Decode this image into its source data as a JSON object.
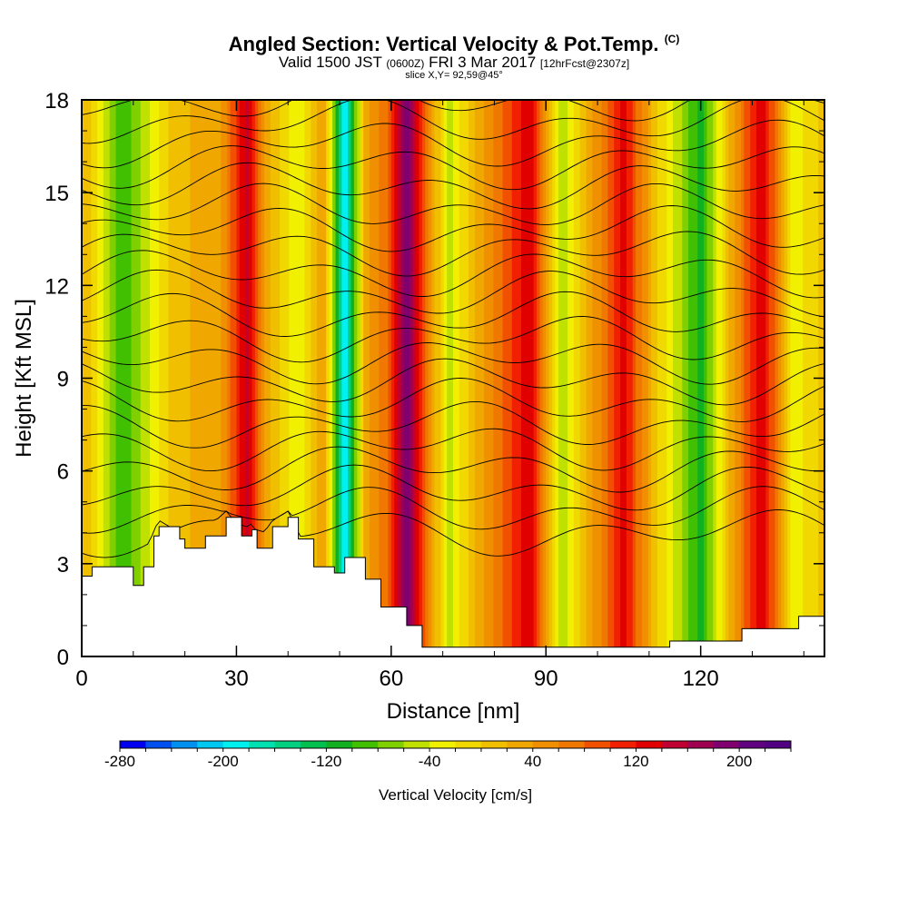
{
  "header": {
    "title_main": "Angled Section: Vertical Velocity & Pot.Temp.",
    "title_tag": "(C)",
    "valid_prefix": "Valid 1500 JST",
    "valid_utc": "(0600Z)",
    "valid_date": "FRI 3 Mar 2017",
    "forecast": "[12hrFcst@2307z]",
    "slice": "slice X,Y= 92,59@45°"
  },
  "chart_data": {
    "type": "heatmap",
    "xlabel": "Distance [nm]",
    "ylabel": "Height [Kft MSL]",
    "xlim": [
      0,
      144
    ],
    "ylim": [
      0,
      18
    ],
    "x_ticks": [
      0,
      30,
      60,
      90,
      120
    ],
    "y_ticks": [
      0,
      3,
      6,
      9,
      12,
      15,
      18
    ],
    "colorbar": {
      "label": "Vertical Velocity [cm/s]",
      "min": -280,
      "max": 240,
      "step": 20,
      "tick_labels": [
        -280,
        -200,
        -120,
        -40,
        40,
        120,
        200
      ],
      "colors": [
        "#0000f0",
        "#0050f0",
        "#0090f0",
        "#00c8f0",
        "#00f0f0",
        "#00e0b0",
        "#00d080",
        "#00c050",
        "#10b020",
        "#40c000",
        "#80d000",
        "#c0e000",
        "#f0f000",
        "#f0d800",
        "#f0c000",
        "#f0a800",
        "#f09000",
        "#f07800",
        "#f05000",
        "#f02000",
        "#e00000",
        "#c00030",
        "#a00050",
        "#800070",
        "#600080",
        "#500080"
      ]
    },
    "columns": [
      {
        "x": 2,
        "w": 0
      },
      {
        "x": 8,
        "w": -100
      },
      {
        "x": 18,
        "w": 10
      },
      {
        "x": 27,
        "w": 40
      },
      {
        "x": 32,
        "w": 150
      },
      {
        "x": 36,
        "w": 30
      },
      {
        "x": 42,
        "w": -40
      },
      {
        "x": 47,
        "w": 40
      },
      {
        "x": 51,
        "w": -200
      },
      {
        "x": 55,
        "w": 30
      },
      {
        "x": 60,
        "w": 90
      },
      {
        "x": 63,
        "w": 210
      },
      {
        "x": 68,
        "w": 40
      },
      {
        "x": 71,
        "w": -50
      },
      {
        "x": 78,
        "w": 40
      },
      {
        "x": 87,
        "w": 140
      },
      {
        "x": 93,
        "w": -60
      },
      {
        "x": 98,
        "w": 20
      },
      {
        "x": 105,
        "w": 130
      },
      {
        "x": 111,
        "w": 10
      },
      {
        "x": 120,
        "w": -110
      },
      {
        "x": 127,
        "w": 50
      },
      {
        "x": 132,
        "w": 140
      },
      {
        "x": 138,
        "w": -30
      },
      {
        "x": 143,
        "w": 0
      }
    ],
    "terrain": [
      {
        "x": 0,
        "h": 2.6
      },
      {
        "x": 2,
        "h": 2.9
      },
      {
        "x": 10,
        "h": 2.3
      },
      {
        "x": 12,
        "h": 2.9
      },
      {
        "x": 14,
        "h": 3.9
      },
      {
        "x": 15,
        "h": 4.2
      },
      {
        "x": 19,
        "h": 3.8
      },
      {
        "x": 20,
        "h": 3.5
      },
      {
        "x": 24,
        "h": 3.9
      },
      {
        "x": 28,
        "h": 4.5
      },
      {
        "x": 31,
        "h": 3.9
      },
      {
        "x": 33,
        "h": 4.1
      },
      {
        "x": 34,
        "h": 3.5
      },
      {
        "x": 37,
        "h": 4.2
      },
      {
        "x": 40,
        "h": 4.5
      },
      {
        "x": 42,
        "h": 3.8
      },
      {
        "x": 45,
        "h": 2.9
      },
      {
        "x": 49,
        "h": 2.7
      },
      {
        "x": 51,
        "h": 3.2
      },
      {
        "x": 55,
        "h": 2.5
      },
      {
        "x": 58,
        "h": 1.6
      },
      {
        "x": 63,
        "h": 1.0
      },
      {
        "x": 66,
        "h": 0.3
      },
      {
        "x": 113,
        "h": 0.3
      },
      {
        "x": 114,
        "h": 0.5
      },
      {
        "x": 128,
        "h": 0.9
      },
      {
        "x": 139,
        "h": 1.3
      },
      {
        "x": 144,
        "h": 1.3
      }
    ]
  }
}
